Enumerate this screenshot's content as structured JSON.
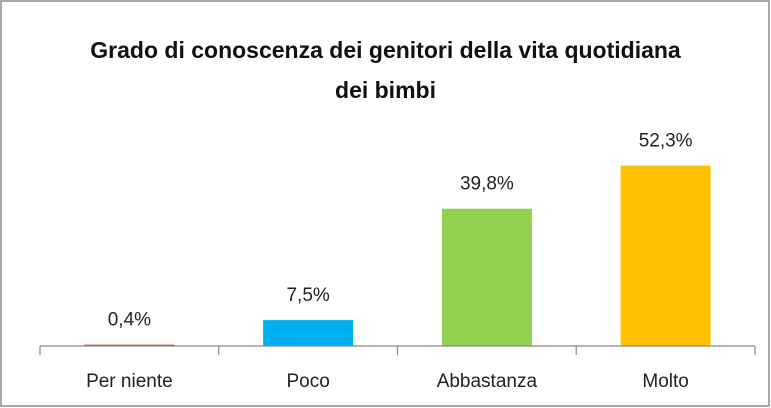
{
  "chart_data": {
    "type": "bar",
    "title": "Grado di conoscenza dei genitori della vita quotidiana dei bimbi",
    "categories": [
      "Per niente",
      "Poco",
      "Abbastanza",
      "Molto"
    ],
    "values": [
      0.4,
      7.5,
      39.8,
      52.3
    ],
    "value_labels": [
      "0,4%",
      "7,5%",
      "39,8%",
      "52,3%"
    ],
    "colors": [
      "#e0443a",
      "#00b0f0",
      "#92d050",
      "#ffc000"
    ],
    "ylim": [
      0,
      60
    ]
  }
}
